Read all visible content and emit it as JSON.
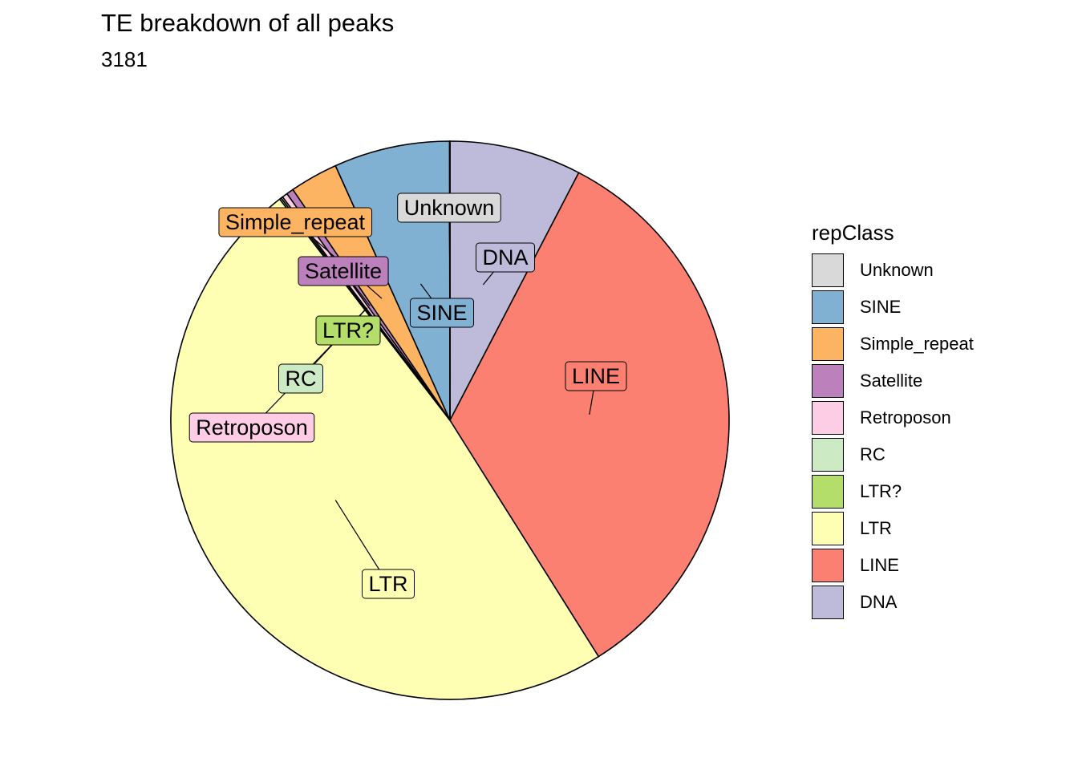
{
  "chart_data": {
    "type": "pie",
    "title": "TE breakdown of all peaks",
    "subtitle": "3181",
    "legend_title": "repClass",
    "legend_position": "right",
    "slices": [
      {
        "label": "DNA",
        "value": 7.4,
        "color": "#BEBADA"
      },
      {
        "label": "LINE",
        "value": 32.4,
        "color": "#FB8072"
      },
      {
        "label": "LTR",
        "value": 47.0,
        "color": "#FFFFB3"
      },
      {
        "label": "LTR?",
        "value": 0.1,
        "color": "#B3DE69"
      },
      {
        "label": "RC",
        "value": 0.1,
        "color": "#CCEBC5"
      },
      {
        "label": "Retroposon",
        "value": 0.3,
        "color": "#FCCDE5"
      },
      {
        "label": "Satellite",
        "value": 0.4,
        "color": "#BC80BD"
      },
      {
        "label": "Simple_repeat",
        "value": 2.7,
        "color": "#FDB462"
      },
      {
        "label": "SINE",
        "value": 6.5,
        "color": "#80B1D3"
      },
      {
        "label": "Unknown",
        "value": 0.02,
        "color": "#D9D9D9"
      }
    ],
    "legend_order": [
      "Unknown",
      "SINE",
      "Simple_repeat",
      "Satellite",
      "Retroposon",
      "RC",
      "LTR?",
      "LTR",
      "LINE",
      "DNA"
    ]
  }
}
